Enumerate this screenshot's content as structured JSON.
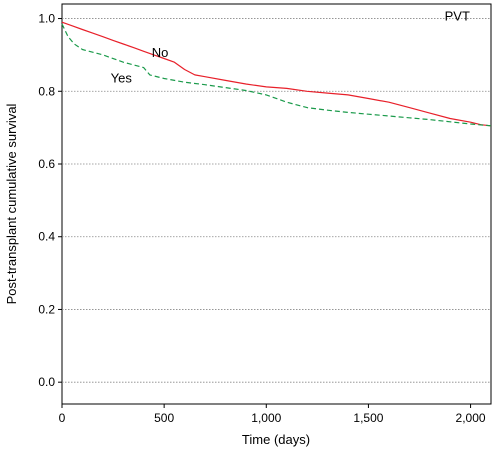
{
  "chart_data": {
    "type": "line",
    "title": "PVT",
    "xlabel": "Time (days)",
    "ylabel": "Post-transplant cumulative survival",
    "xlim": [
      0,
      2100
    ],
    "ylim": [
      -0.06,
      1.04
    ],
    "x_ticks": [
      0,
      500,
      1000,
      1500,
      2000
    ],
    "x_tick_labels": [
      "0",
      "500",
      "1,000",
      "1,500",
      "2,000"
    ],
    "y_ticks": [
      0.0,
      0.2,
      0.4,
      0.6,
      0.8,
      1.0
    ],
    "y_tick_labels": [
      "0.0",
      "0.2",
      "0.4",
      "0.6",
      "0.8",
      "1.0"
    ],
    "grid": true,
    "series": [
      {
        "name": "No",
        "color": "#e8202a",
        "style": "solid",
        "points": [
          [
            0,
            0.99
          ],
          [
            50,
            0.98
          ],
          [
            100,
            0.97
          ],
          [
            150,
            0.96
          ],
          [
            200,
            0.95
          ],
          [
            250,
            0.94
          ],
          [
            300,
            0.93
          ],
          [
            350,
            0.92
          ],
          [
            400,
            0.91
          ],
          [
            450,
            0.9
          ],
          [
            500,
            0.89
          ],
          [
            550,
            0.88
          ],
          [
            600,
            0.86
          ],
          [
            650,
            0.845
          ],
          [
            700,
            0.84
          ],
          [
            800,
            0.83
          ],
          [
            900,
            0.82
          ],
          [
            1000,
            0.812
          ],
          [
            1100,
            0.808
          ],
          [
            1200,
            0.8
          ],
          [
            1300,
            0.795
          ],
          [
            1400,
            0.79
          ],
          [
            1500,
            0.78
          ],
          [
            1600,
            0.77
          ],
          [
            1700,
            0.755
          ],
          [
            1800,
            0.74
          ],
          [
            1900,
            0.725
          ],
          [
            2000,
            0.715
          ],
          [
            2050,
            0.708
          ],
          [
            2100,
            0.705
          ]
        ]
      },
      {
        "name": "Yes",
        "color": "#1a9a4a",
        "style": "dashed",
        "points": [
          [
            0,
            0.985
          ],
          [
            30,
            0.95
          ],
          [
            60,
            0.93
          ],
          [
            100,
            0.915
          ],
          [
            200,
            0.9
          ],
          [
            300,
            0.88
          ],
          [
            400,
            0.865
          ],
          [
            430,
            0.845
          ],
          [
            500,
            0.835
          ],
          [
            600,
            0.825
          ],
          [
            700,
            0.818
          ],
          [
            800,
            0.81
          ],
          [
            900,
            0.802
          ],
          [
            1000,
            0.79
          ],
          [
            1100,
            0.77
          ],
          [
            1200,
            0.755
          ],
          [
            1300,
            0.748
          ],
          [
            1400,
            0.742
          ],
          [
            1500,
            0.737
          ],
          [
            1600,
            0.732
          ],
          [
            1700,
            0.727
          ],
          [
            1800,
            0.722
          ],
          [
            1900,
            0.716
          ],
          [
            2000,
            0.71
          ],
          [
            2100,
            0.705
          ]
        ]
      }
    ],
    "annotations": [
      {
        "text": "No",
        "x": 480,
        "y": 0.905
      },
      {
        "text": "Yes",
        "x": 290,
        "y": 0.835
      },
      {
        "text": "PVT",
        "x": 1935,
        "y": 1.005
      }
    ]
  }
}
